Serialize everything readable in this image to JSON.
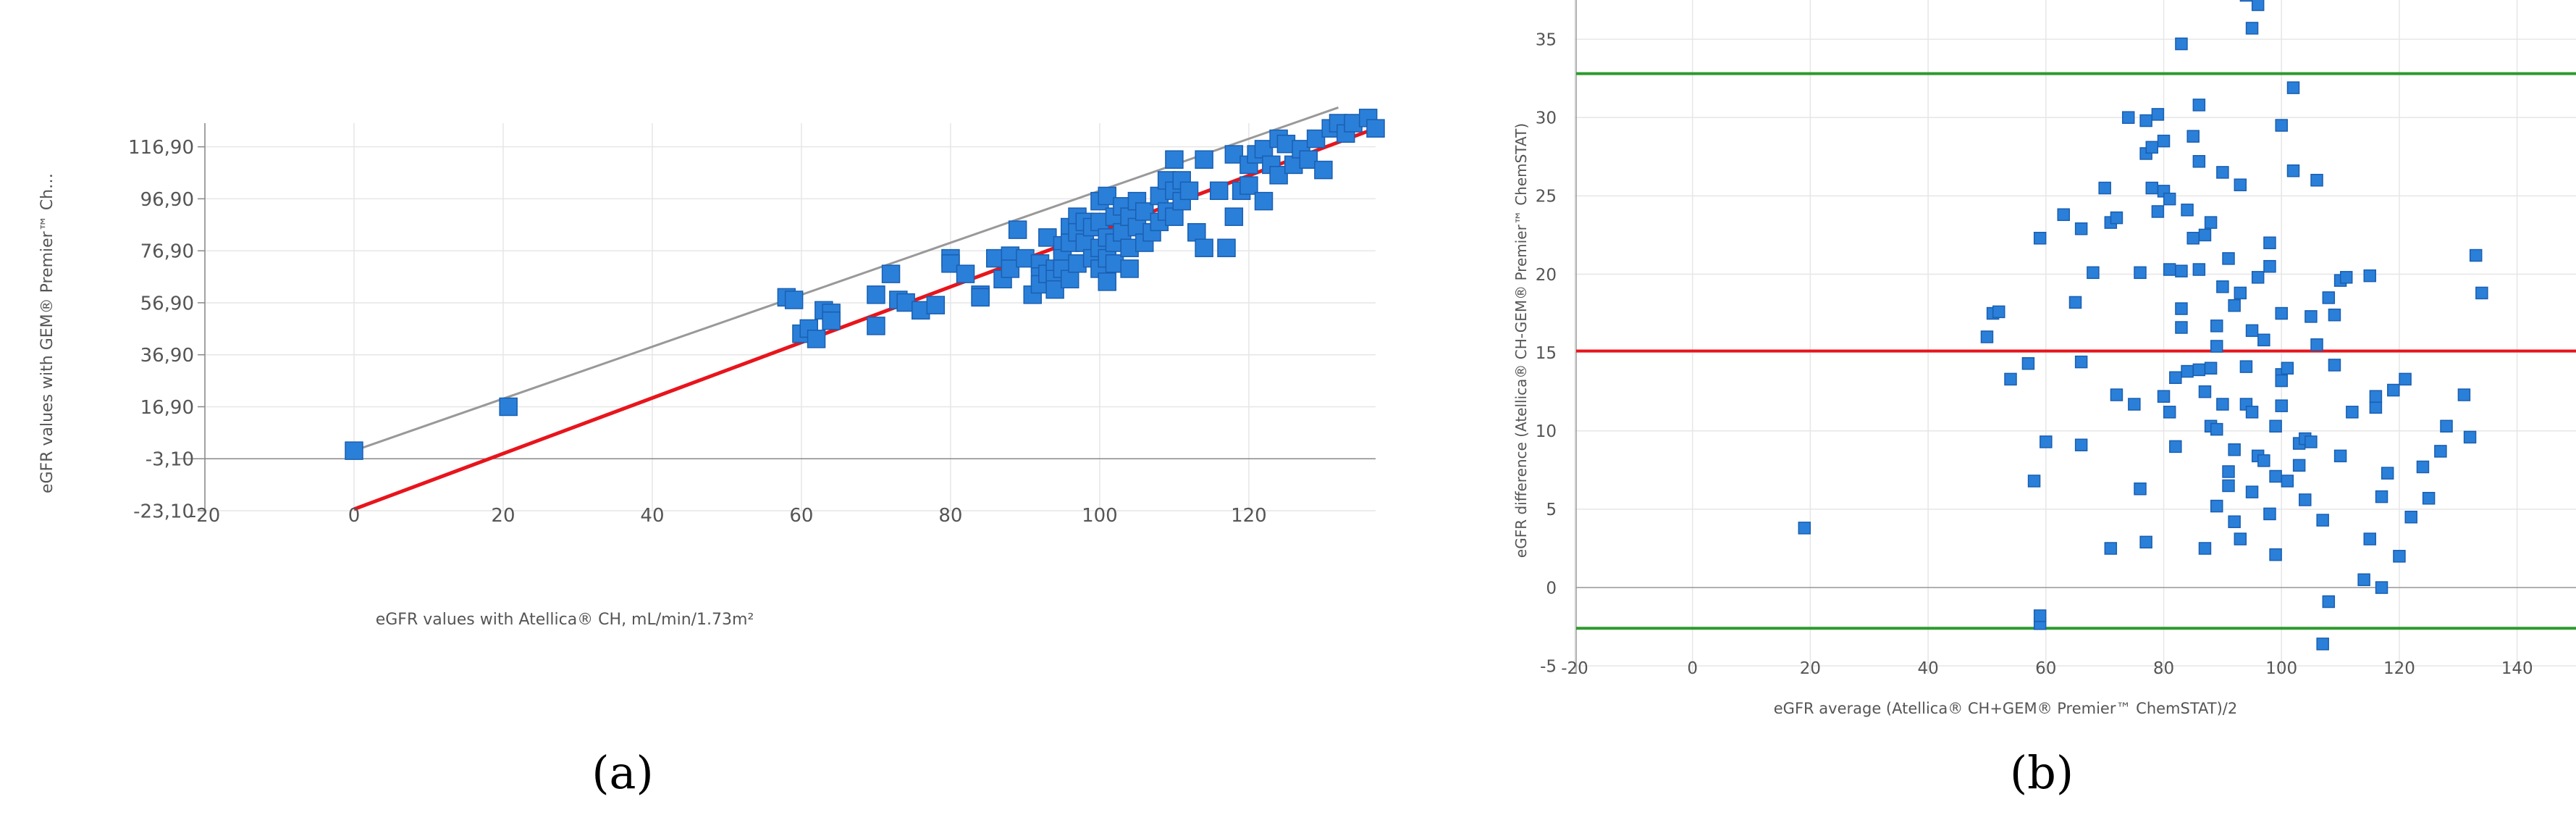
{
  "panels": [
    {
      "label": "(a)",
      "letter": "a"
    },
    {
      "label": "(b)",
      "letter": "b"
    }
  ],
  "chart_data": [
    {
      "type": "scatter",
      "title": "",
      "xlabel": "eGFR values with Atellica® CH, mL/min/1.73m²",
      "ylabel": "eGFR values with GEM® Premier™ Ch…",
      "xlim": [
        -20,
        137
      ],
      "ylim": [
        -23.1,
        126
      ],
      "xticks": [
        -20,
        0,
        20,
        40,
        60,
        80,
        100,
        120
      ],
      "xtick_labels": [
        "-20",
        "0",
        "20",
        "40",
        "60",
        "80",
        "100",
        "120"
      ],
      "yticks": [
        -23.1,
        -3.1,
        16.9,
        36.9,
        56.9,
        76.9,
        96.9,
        116.9
      ],
      "ytick_labels": [
        "-23,10",
        "-3,10",
        "16,90",
        "36,90",
        "56,90",
        "76,90",
        "96,90",
        "116,90"
      ],
      "grid": true,
      "marker_color": "#2a7fd9",
      "lines": [
        {
          "role": "identity",
          "color": "#999999",
          "x": [
            0,
            132
          ],
          "y": [
            0,
            132
          ]
        },
        {
          "role": "regression",
          "color": "#e8141c",
          "x": [
            0,
            137
          ],
          "y": [
            -22.5,
            124
          ]
        }
      ],
      "series": [
        {
          "x": [
            0,
            20.7,
            58,
            59,
            60,
            61,
            62,
            63,
            64,
            64,
            70,
            70,
            72,
            73,
            74,
            76,
            78,
            80,
            80,
            82,
            84,
            84,
            86,
            87,
            88,
            88,
            89,
            90,
            91,
            92,
            92,
            92,
            93,
            93,
            94,
            94,
            94,
            95,
            95,
            95,
            96,
            96,
            96,
            97,
            97,
            97,
            98,
            98,
            99,
            99,
            100,
            100,
            100,
            100,
            101,
            101,
            101,
            101,
            102,
            102,
            102,
            103,
            103,
            104,
            104,
            104,
            105,
            105,
            106,
            106,
            107,
            108,
            108,
            109,
            109,
            110,
            110,
            110,
            111,
            111,
            112,
            113,
            114,
            114,
            116,
            117,
            118,
            118,
            119,
            120,
            120,
            121,
            122,
            122,
            123,
            124,
            124,
            125,
            126,
            127,
            128,
            129,
            130,
            131,
            132,
            133,
            134,
            136,
            137
          ],
          "y": [
            0,
            16.9,
            59,
            58,
            45,
            47,
            43,
            54,
            53,
            50,
            48,
            60,
            68,
            58,
            57,
            54,
            56,
            74,
            72,
            68,
            60,
            59,
            74,
            66,
            75,
            70,
            85,
            74,
            60,
            72,
            67,
            64,
            82,
            68,
            70,
            66,
            62,
            79,
            74,
            70,
            86,
            80,
            66,
            90,
            84,
            72,
            88,
            80,
            86,
            74,
            96,
            88,
            78,
            70,
            98,
            82,
            74,
            65,
            90,
            80,
            72,
            94,
            84,
            90,
            78,
            70,
            96,
            86,
            92,
            80,
            84,
            98,
            88,
            104,
            92,
            112,
            100,
            90,
            104,
            96,
            100,
            84,
            112,
            78,
            100,
            78,
            114,
            90,
            100,
            110,
            102,
            114,
            116,
            96,
            110,
            120,
            106,
            118,
            110,
            116,
            112,
            120,
            108,
            124,
            126,
            122,
            126,
            128,
            124
          ]
        }
      ]
    },
    {
      "type": "scatter",
      "title": "",
      "xlabel": "eGFR average (Atellica® CH+GEM® Premier™ ChemSTAT)/2",
      "ylabel": "eGFR difference (Atellica® CH-GEM® Premier™ ChemSTAT)",
      "xlim": [
        -20,
        150
      ],
      "ylim": [
        -5.5,
        37.5
      ],
      "xticks": [
        -20,
        0,
        20,
        40,
        60,
        80,
        100,
        120,
        140
      ],
      "xtick_labels": [
        "-20",
        "0",
        "20",
        "40",
        "60",
        "80",
        "100",
        "120",
        "140"
      ],
      "yticks": [
        -5,
        0,
        5,
        10,
        15,
        20,
        25,
        30,
        35
      ],
      "ytick_labels": [
        "-5",
        "0",
        "5",
        "10",
        "15",
        "20",
        "25",
        "30",
        "35"
      ],
      "grid": true,
      "marker_color": "#2a7fd9",
      "hlines": [
        {
          "role": "upper-limit",
          "y": 32.8,
          "color": "#2e9a2e"
        },
        {
          "role": "mean",
          "y": 15.1,
          "color": "#e8141c"
        },
        {
          "role": "lower-limit",
          "y": -2.6,
          "color": "#2e9a2e"
        }
      ],
      "series": [
        {
          "x": [
            19,
            50,
            51,
            52,
            54,
            57,
            58,
            59,
            59,
            59,
            60,
            63,
            65,
            66,
            66,
            66,
            68,
            70,
            71,
            71,
            72,
            72,
            74,
            75,
            76,
            76,
            77,
            77,
            77,
            78,
            78,
            79,
            79,
            80,
            80,
            80,
            81,
            81,
            81,
            82,
            82,
            83,
            83,
            83,
            83,
            84,
            84,
            85,
            85,
            86,
            86,
            86,
            86,
            87,
            87,
            87,
            88,
            88,
            88,
            89,
            89,
            89,
            89,
            90,
            90,
            90,
            91,
            91,
            91,
            92,
            92,
            92,
            93,
            93,
            93,
            94,
            94,
            94,
            95,
            95,
            95,
            95,
            96,
            96,
            96,
            97,
            97,
            98,
            98,
            98,
            99,
            99,
            99,
            100,
            100,
            100,
            100,
            100,
            101,
            101,
            102,
            102,
            103,
            103,
            104,
            104,
            105,
            105,
            106,
            106,
            107,
            107,
            108,
            108,
            109,
            109,
            110,
            110,
            111,
            112,
            114,
            115,
            115,
            116,
            116,
            117,
            117,
            118,
            119,
            120,
            121,
            122,
            124,
            125,
            127,
            128,
            131,
            132,
            133,
            134
          ],
          "y": [
            3.8,
            16,
            17.5,
            17.6,
            13.3,
            14.3,
            6.8,
            -2.3,
            -1.8,
            22.3,
            9.3,
            23.8,
            18.2,
            14.4,
            9.1,
            22.9,
            20.1,
            25.5,
            2.5,
            23.3,
            23.6,
            12.3,
            30,
            11.7,
            20.1,
            6.3,
            27.7,
            29.8,
            2.9,
            25.5,
            28.1,
            24,
            30.2,
            28.5,
            25.3,
            12.2,
            11.2,
            20.3,
            24.8,
            9,
            13.4,
            34.7,
            17.8,
            16.6,
            20.2,
            24.1,
            13.8,
            22.3,
            28.8,
            27.2,
            13.9,
            20.3,
            30.8,
            12.5,
            2.5,
            22.5,
            23.3,
            10.3,
            14,
            16.7,
            10.1,
            5.2,
            15.4,
            26.5,
            19.2,
            11.7,
            21,
            6.5,
            7.4,
            18,
            4.2,
            8.8,
            3.1,
            25.7,
            18.8,
            37.8,
            11.7,
            14.1,
            35.7,
            6.1,
            11.2,
            16.4,
            37.2,
            8.4,
            19.8,
            15.8,
            8.1,
            22,
            4.7,
            20.5,
            10.3,
            7.1,
            2.1,
            17.5,
            11.6,
            13.6,
            13.2,
            29.5,
            6.8,
            14,
            31.9,
            26.6,
            9.2,
            7.8,
            5.6,
            9.5,
            9.3,
            17.3,
            26,
            15.5,
            -3.6,
            4.3,
            18.5,
            -0.9,
            17.4,
            14.2,
            19.6,
            8.4,
            19.8,
            11.2,
            0.5,
            19.9,
            3.1,
            11.5,
            12.2,
            5.8,
            0,
            7.3,
            12.6,
            2,
            13.3,
            4.5,
            7.7,
            5.7,
            8.7,
            10.3,
            12.3,
            9.6,
            21.2,
            18.8
          ]
        }
      ]
    }
  ]
}
